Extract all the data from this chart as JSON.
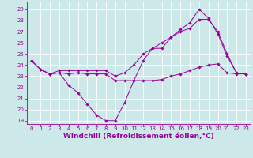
{
  "xlabel": "Windchill (Refroidissement éolien,°C)",
  "bg_color": "#cce8e8",
  "line_color": "#990099",
  "xlim": [
    -0.5,
    23.5
  ],
  "ylim": [
    18.7,
    29.7
  ],
  "yticks": [
    19,
    20,
    21,
    22,
    23,
    24,
    25,
    26,
    27,
    28,
    29
  ],
  "xticks": [
    0,
    1,
    2,
    3,
    4,
    5,
    6,
    7,
    8,
    9,
    10,
    11,
    12,
    13,
    14,
    15,
    16,
    17,
    18,
    19,
    20,
    21,
    22,
    23
  ],
  "series": [
    [
      24.4,
      23.6,
      23.2,
      23.3,
      23.2,
      23.3,
      23.2,
      23.2,
      23.2,
      22.6,
      22.6,
      22.6,
      22.6,
      22.6,
      22.7,
      23.0,
      23.2,
      23.5,
      23.8,
      24.0,
      24.1,
      23.3,
      23.2,
      23.2
    ],
    [
      24.4,
      23.6,
      23.2,
      23.3,
      22.2,
      21.5,
      20.5,
      19.5,
      19.0,
      19.0,
      20.6,
      22.6,
      24.4,
      25.5,
      25.5,
      26.5,
      27.2,
      27.8,
      29.0,
      28.2,
      26.8,
      24.8,
      23.3,
      23.2
    ],
    [
      24.4,
      23.6,
      23.2,
      23.5,
      23.5,
      23.5,
      23.5,
      23.5,
      23.5,
      23.0,
      23.3,
      24.0,
      25.0,
      25.5,
      26.0,
      26.5,
      27.0,
      27.3,
      28.1,
      28.1,
      27.0,
      25.0,
      23.3,
      23.2
    ]
  ],
  "grid_color": "#ffffff",
  "tick_fontsize": 5.0,
  "xlabel_fontsize": 6.5
}
